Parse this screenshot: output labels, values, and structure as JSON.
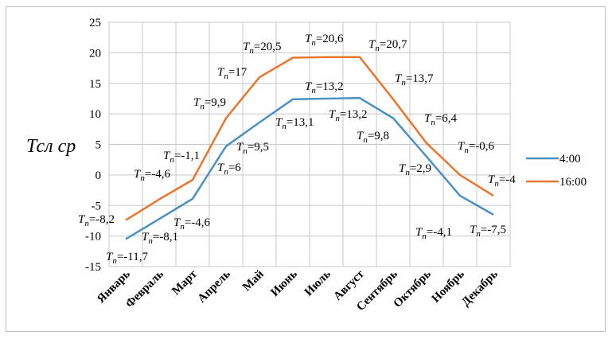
{
  "chart_data": {
    "type": "line",
    "title": "",
    "xlabel": "",
    "ylabel": "Тсл ср",
    "ylim": [
      -15,
      25
    ],
    "yticks": [
      25,
      20,
      15,
      10,
      5,
      0,
      -5,
      -10,
      -15
    ],
    "grid": true,
    "legend_position": "right",
    "categories": [
      "Январь",
      "Февраль",
      "Март",
      "Апрель",
      "Май",
      "Июнь",
      "Июль",
      "Август",
      "Сентябрь",
      "Октябрь",
      "Ноябрь",
      "Декабрь"
    ],
    "series": [
      {
        "name": "4:00",
        "color": "#4a90c0",
        "values": [
          -10.5,
          -7.2,
          -3.9,
          4.7,
          8.6,
          12.4,
          12.5,
          12.6,
          9.3,
          3.0,
          -3.4,
          -6.5
        ],
        "labels": [
          "-11,7",
          "-8,1",
          "-4,6",
          "6",
          "9,5",
          "13,1",
          "13,2",
          "13,2",
          "9,8",
          "2,9",
          "-4,1",
          "-7,5"
        ]
      },
      {
        "name": "16:00",
        "color": "#e8762f",
        "values": [
          -7.4,
          -4.0,
          -0.8,
          9.3,
          16.0,
          19.2,
          19.3,
          19.3,
          12.4,
          5.2,
          0.0,
          -3.4
        ],
        "labels": [
          "-8,2",
          "-4,6",
          "-1,1",
          "9,9",
          "17",
          "20,5",
          "20,6",
          "20,7",
          "13,7",
          "6,4",
          "-0,6",
          "-4"
        ]
      }
    ],
    "label_prefix": "T",
    "label_sub": "n"
  }
}
